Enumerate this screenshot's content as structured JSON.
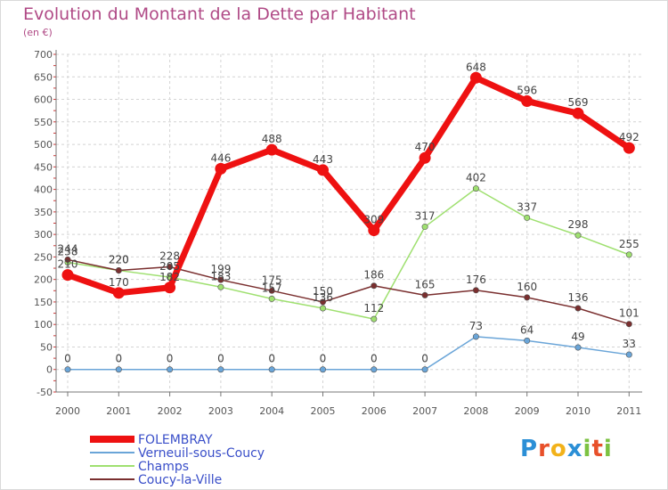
{
  "title": "Evolution du Montant de la Dette par Habitant",
  "subtitle": "(en €)",
  "logo": {
    "text": "Proxiti",
    "colors": [
      "#2b8fd6",
      "#e8502a",
      "#f2b21a",
      "#2b8fd6",
      "#7cc242",
      "#e8502a",
      "#7cc242"
    ]
  },
  "chart_data": {
    "type": "line",
    "title": "Evolution du Montant de la Dette par Habitant",
    "subtitle": "(en €)",
    "xlabel": "",
    "ylabel": "",
    "x": [
      "2000",
      "2001",
      "2002",
      "2003",
      "2004",
      "2005",
      "2006",
      "2007",
      "2008",
      "2009",
      "2010",
      "2011"
    ],
    "yticks": [
      "-50",
      "0",
      "50",
      "100",
      "150",
      "200",
      "250",
      "300",
      "350",
      "400",
      "450",
      "500",
      "550",
      "600",
      "650",
      "700"
    ],
    "ylim": [
      -50,
      700
    ],
    "grid": true,
    "legend": "bottom-left",
    "series": [
      {
        "name": "FOLEMBRAY",
        "color": "#ee1111",
        "width": 7,
        "values": [
          210,
          170,
          182,
          446,
          488,
          443,
          309,
          470,
          648,
          596,
          569,
          492
        ],
        "labels": [
          "210",
          "170",
          "182",
          "446",
          "488",
          "443",
          "309",
          "470",
          "648",
          "596",
          "569",
          "492"
        ]
      },
      {
        "name": "Verneuil-sous-Coucy",
        "color": "#6aa5d8",
        "width": 1.5,
        "values": [
          0,
          0,
          0,
          0,
          0,
          0,
          0,
          0,
          73,
          64,
          49,
          33
        ],
        "labels": [
          "0",
          "0",
          "0",
          "0",
          "0",
          "0",
          "0",
          "0",
          "73",
          "64",
          "49",
          "33"
        ]
      },
      {
        "name": "Champs",
        "color": "#9fe070",
        "width": 1.5,
        "values": [
          238,
          220,
          205,
          183,
          157,
          136,
          112,
          317,
          402,
          337,
          298,
          255
        ],
        "labels": [
          "238",
          "220",
          "205",
          "183",
          "157",
          "136",
          "112",
          "317",
          "402",
          "337",
          "298",
          "255"
        ]
      },
      {
        "name": "Coucy-la-Ville",
        "color": "#7a2f2f",
        "width": 1.5,
        "values": [
          244,
          220,
          228,
          199,
          175,
          150,
          186,
          165,
          176,
          160,
          136,
          101
        ],
        "labels": [
          "244",
          "220",
          "228",
          "199",
          "175",
          "150",
          "186",
          "165",
          "176",
          "160",
          "136",
          "101"
        ]
      }
    ]
  }
}
